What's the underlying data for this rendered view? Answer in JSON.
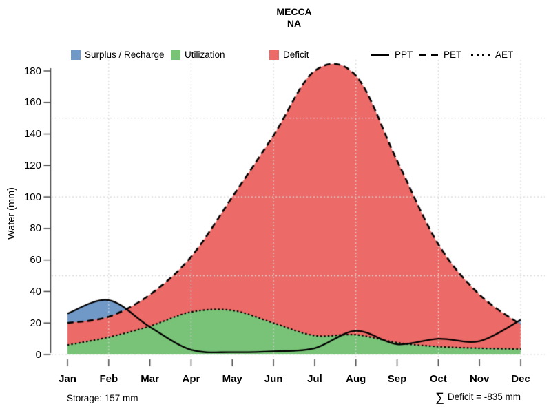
{
  "title": "MECCA",
  "subtitle": "NA",
  "legend": {
    "fills": [
      {
        "label": "Surplus / Recharge",
        "color": "#7199C8"
      },
      {
        "label": "Utilization",
        "color": "#79C379"
      },
      {
        "label": "Deficit",
        "color": "#EC6A67"
      }
    ],
    "lines": [
      {
        "label": "PPT",
        "style": "solid"
      },
      {
        "label": "PET",
        "style": "dashed"
      },
      {
        "label": "AET",
        "style": "dotted"
      }
    ]
  },
  "annotations": {
    "storage": "Storage: 157 mm",
    "sigma": "∑",
    "deficit_sum": "Deficit = -835 mm"
  },
  "chart_data": {
    "type": "area",
    "title": "MECCA",
    "subtitle": "NA",
    "ylabel": "Water (mm)",
    "xlabel": "",
    "ylim": [
      0,
      180
    ],
    "yticks": [
      0,
      20,
      40,
      60,
      80,
      100,
      120,
      140,
      160,
      180
    ],
    "categories": [
      "Jan",
      "Feb",
      "Mar",
      "Apr",
      "May",
      "Jun",
      "Jul",
      "Aug",
      "Sep",
      "Oct",
      "Nov",
      "Dec"
    ],
    "series": [
      {
        "name": "PPT",
        "style": "solid",
        "values": [
          26,
          34.5,
          17.5,
          3,
          1.5,
          2,
          4,
          15,
          6.5,
          10,
          8.5,
          22
        ]
      },
      {
        "name": "PET",
        "style": "dashed",
        "values": [
          20,
          24,
          38,
          62,
          100,
          139,
          180,
          177,
          123,
          70,
          38,
          19
        ]
      },
      {
        "name": "AET",
        "style": "dotted",
        "values": [
          6,
          11,
          18,
          27,
          28,
          20,
          12,
          12.5,
          7.5,
          5,
          4,
          3.5
        ]
      }
    ],
    "areas": [
      {
        "label": "Surplus / Recharge",
        "between": [
          "PPT",
          "PET"
        ],
        "where": "PPT > PET",
        "color": "#7199C8"
      },
      {
        "label": "Deficit",
        "between": [
          "PET",
          "AET"
        ],
        "color": "#EC6A67"
      },
      {
        "label": "Utilization",
        "between": [
          "AET",
          "baseline 0"
        ],
        "color": "#79C379"
      }
    ],
    "grid": {
      "h_values": [
        0,
        50,
        100,
        150
      ],
      "v_months": [
        "Feb",
        "Apr",
        "Jun",
        "Aug",
        "Oct",
        "Dec"
      ],
      "style": "dotted light gray, drawn over fills"
    },
    "legend_position": "top",
    "summary": {
      "storage_mm": 157,
      "deficit_sum_mm": -835
    }
  }
}
